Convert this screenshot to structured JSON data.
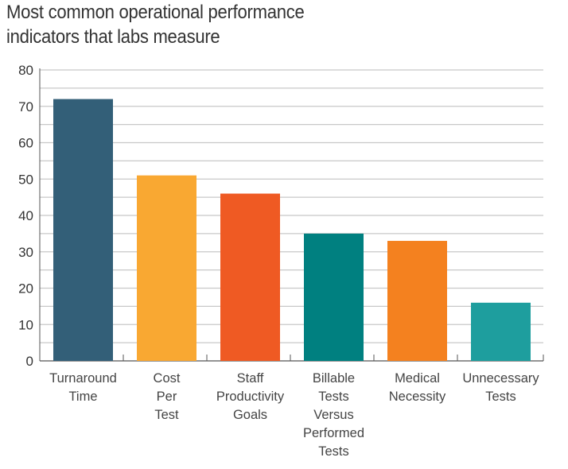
{
  "chart_data": {
    "type": "bar",
    "title": "Most common operational performance indicators that labs measure",
    "title_lines": [
      "Most common operational performance",
      "indicators that labs measure"
    ],
    "categories": [
      [
        "Turnaround",
        "Time"
      ],
      [
        "Cost",
        "Per",
        "Test"
      ],
      [
        "Staff",
        "Productivity",
        "Goals"
      ],
      [
        "Billable",
        "Tests",
        "Versus",
        "Performed",
        "Tests"
      ],
      [
        "Medical",
        "Necessity"
      ],
      [
        "Unnecessary",
        "Tests"
      ]
    ],
    "values": [
      72,
      51,
      46,
      35,
      33,
      16
    ],
    "colors": [
      "#335f78",
      "#f9a832",
      "#ef5a23",
      "#008080",
      "#f4811f",
      "#1e9e9e"
    ],
    "xlabel": "",
    "ylabel": "",
    "ylim": [
      0,
      80
    ],
    "yticks": [
      0,
      10,
      20,
      30,
      40,
      50,
      60,
      70,
      80
    ],
    "grid": true,
    "grid_step": 5,
    "legend": "none"
  }
}
